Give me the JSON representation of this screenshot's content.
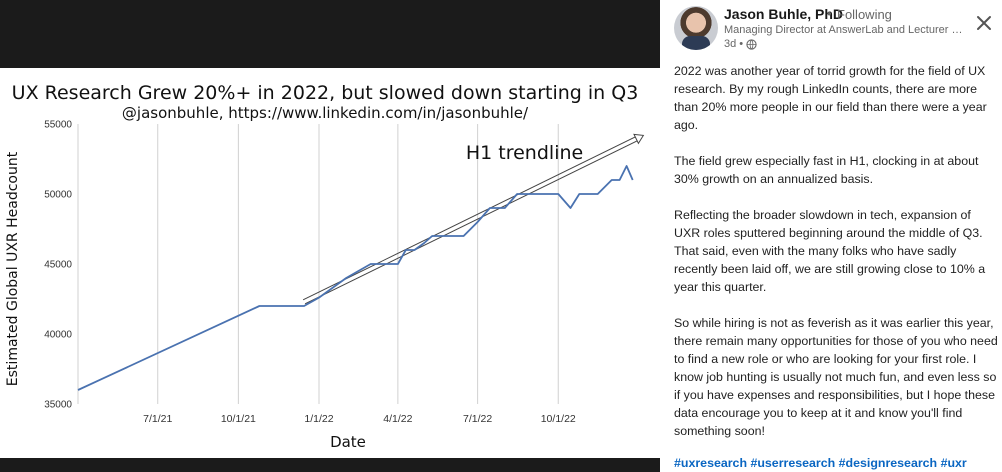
{
  "chart_data": {
    "type": "line",
    "title": "UX Research Grew 20%+ in 2022, but slowed down starting in Q3",
    "subtitle": "@jasonbuhle, https://www.linkedin.com/in/jasonbuhle/",
    "xlabel": "Date",
    "ylabel": "Estimated Global UXR Headcount",
    "x_ticks": [
      "7/1/21",
      "10/1/21",
      "1/1/22",
      "4/1/22",
      "7/1/22",
      "10/1/22"
    ],
    "x_range": [
      "2021-04-01",
      "2022-12-31"
    ],
    "ylim": [
      35000,
      55000
    ],
    "y_ticks": [
      35000,
      40000,
      45000,
      50000,
      55000
    ],
    "grid": "vertical",
    "color": "#4a72b0",
    "series": [
      {
        "x": [
          "2021-04-01",
          "2021-10-25",
          "2021-12-15",
          "2022-01-01",
          "2022-02-01",
          "2022-02-15",
          "2022-03-01",
          "2022-03-10",
          "2022-03-25",
          "2022-04-01",
          "2022-04-10",
          "2022-04-20",
          "2022-05-01",
          "2022-05-10",
          "2022-05-20",
          "2022-06-01",
          "2022-06-15",
          "2022-07-01",
          "2022-07-15",
          "2022-08-01",
          "2022-08-15",
          "2022-09-01",
          "2022-09-10",
          "2022-09-20",
          "2022-10-01",
          "2022-10-15",
          "2022-10-25",
          "2022-11-01",
          "2022-11-15",
          "2022-12-01",
          "2022-12-10",
          "2022-12-18",
          "2022-12-25"
        ],
        "y": [
          36000,
          42000,
          42000,
          42600,
          44000,
          44500,
          45000,
          45000,
          45000,
          45000,
          46000,
          46000,
          46500,
          47000,
          47000,
          47000,
          47000,
          48000,
          49000,
          49000,
          50000,
          50000,
          50000,
          50000,
          50000,
          49000,
          50000,
          50000,
          50000,
          51000,
          51000,
          52000,
          51000
        ]
      }
    ],
    "trendline": {
      "label": "H1 trendline",
      "x": [
        "2021-12-15",
        "2022-12-31"
      ],
      "y": [
        42300,
        54000
      ]
    }
  },
  "post": {
    "author": "Jason Buhle, PhD",
    "dot": "•",
    "following": "Following",
    "headline": "Managing Director at AnswerLab and Lecturer …",
    "age": "3d •",
    "close_icon": "close-icon",
    "visibility_icon": "globe-icon",
    "paragraphs": [
      "2022 was another year of torrid growth for the field of UX research. By my rough LinkedIn counts, there are more than 20% more people in our field than there were a year ago.",
      "The field grew especially fast in H1, clocking in at about 30% growth on an annualized basis.",
      "Reflecting the broader slowdown in tech, expansion of UXR roles sputtered beginning around the middle of Q3. That said, even with the many folks who have sadly recently been laid off, we are still growing close to 10% a year this quarter.",
      "So while hiring is not as feverish as it was earlier this year, there remain many opportunities for those of you who need to find a new role or who are looking for your first role. I know job hunting is usually not much fun, and even less so if you have expenses and responsibilities, but I hope these data encourage you to keep at it and know you'll find something soon!"
    ],
    "hashtags": "#uxresearch #userresearch #designresearch #uxr",
    "link_color": "#0a66c2"
  }
}
